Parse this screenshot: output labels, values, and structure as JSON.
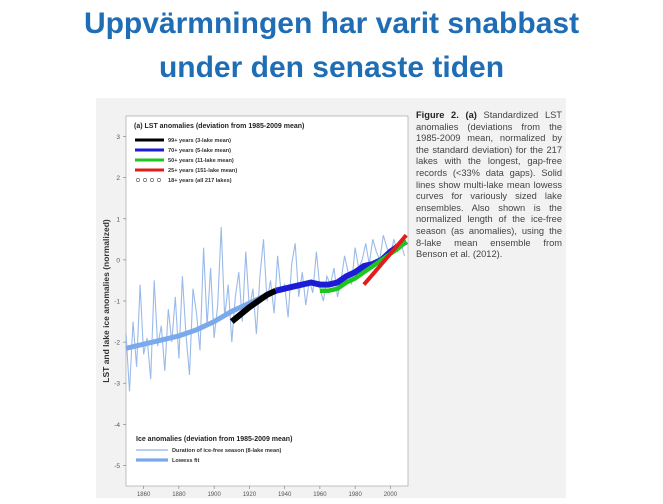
{
  "slide": {
    "title_line1": "Uppvärmningen har varit snabbast",
    "title_line2": "under den senaste tiden"
  },
  "caption": {
    "label": "Figure 2. (a)",
    "text": "Standardized LST anomalies (deviations from the 1985-2009 mean, normalized by the standard deviation) for the 217 lakes with the longest, gap-free records (<33% data gaps). Solid lines show multi-lake mean lowess curves for variously sized lake ensembles. Also shown is the normalized length of the ice-free season (as anomalies), using the 8-lake mean ensemble from Benson et al. (2012)."
  },
  "colors": {
    "title": "#1f6db5",
    "black": "#000000",
    "blue": "#1c1cd6",
    "green": "#1fc41f",
    "red": "#e01c1c",
    "scatter": "#666666",
    "ice_line": "#8fb3e8",
    "ice_fit": "#7aa9ec"
  },
  "chart_data": {
    "type": "line",
    "panel_title": "(a) LST anomalies (deviation from 1985-2009 mean)",
    "ylabel": "LST and lake ice anomalies (normalized)",
    "xlim": [
      1850,
      2010
    ],
    "ylim": [
      -5.5,
      3.5
    ],
    "x_ticks": [
      1860,
      1880,
      1900,
      1920,
      1940,
      1960,
      1980,
      2000
    ],
    "y_ticks": [
      3,
      2,
      1,
      0,
      -1,
      -2,
      -3,
      -4,
      -5
    ],
    "grid": false,
    "legend_top": [
      {
        "label": "99+ years (3-lake mean)",
        "color": "#000000",
        "style": "line"
      },
      {
        "label": "70+ years (5-lake mean)",
        "color": "#1c1cd6",
        "style": "line"
      },
      {
        "label": "50+ years (11-lake mean)",
        "color": "#1fc41f",
        "style": "line"
      },
      {
        "label": "25+ years (151-lake mean)",
        "color": "#e01c1c",
        "style": "line"
      },
      {
        "label": "18+ years (all 217 lakes)",
        "color": "#666666",
        "style": "markers"
      }
    ],
    "legend_bottom_title": "Ice anomalies (deviation from 1985-2009 mean)",
    "legend_bottom": [
      {
        "label": "Duration of ice-free season (8-lake mean)",
        "color": "#8fb3e8",
        "style": "thin"
      },
      {
        "label": "Lowess fit",
        "color": "#7aa9ec",
        "style": "thick"
      }
    ],
    "series": [
      {
        "name": "99+ years (3-lake mean)",
        "color": "#000000",
        "x": [
          1910,
          1920,
          1930,
          1935
        ],
        "y": [
          -1.5,
          -1.15,
          -0.85,
          -0.75
        ]
      },
      {
        "name": "70+ years (5-lake mean)",
        "color": "#1c1cd6",
        "x": [
          1935,
          1945,
          1955,
          1960,
          1965,
          1970,
          1975,
          1980,
          1985,
          1990,
          1995,
          2000,
          2005,
          2009
        ],
        "y": [
          -0.75,
          -0.65,
          -0.55,
          -0.6,
          -0.6,
          -0.55,
          -0.4,
          -0.3,
          -0.15,
          -0.1,
          0.0,
          0.2,
          0.35,
          0.45
        ]
      },
      {
        "name": "50+ years (11-lake mean)",
        "color": "#1fc41f",
        "x": [
          1960,
          1965,
          1970,
          1975,
          1980,
          1985,
          1990,
          1995,
          2000,
          2005,
          2009
        ],
        "y": [
          -0.75,
          -0.75,
          -0.7,
          -0.55,
          -0.45,
          -0.3,
          -0.15,
          0.0,
          0.15,
          0.3,
          0.45
        ]
      },
      {
        "name": "25+ years (151-lake mean)",
        "color": "#e01c1c",
        "x": [
          1985,
          1990,
          1995,
          2000,
          2005,
          2009
        ],
        "y": [
          -0.6,
          -0.35,
          -0.1,
          0.15,
          0.4,
          0.6
        ]
      },
      {
        "name": "Lowess fit",
        "color": "#7aa9ec",
        "x": [
          1850,
          1860,
          1870,
          1880,
          1890,
          1900,
          1910,
          1920,
          1930,
          1935
        ],
        "y": [
          -2.15,
          -2.05,
          -1.95,
          -1.85,
          -1.7,
          -1.5,
          -1.25,
          -1.05,
          -0.85,
          -0.75
        ]
      }
    ],
    "ice_series": {
      "name": "Duration of ice-free season (8-lake mean)",
      "x": [
        1850,
        1852,
        1854,
        1856,
        1858,
        1860,
        1862,
        1864,
        1866,
        1868,
        1870,
        1872,
        1874,
        1876,
        1878,
        1880,
        1882,
        1884,
        1886,
        1888,
        1890,
        1892,
        1894,
        1896,
        1898,
        1900,
        1902,
        1904,
        1906,
        1908,
        1910,
        1912,
        1914,
        1916,
        1918,
        1920,
        1922,
        1924,
        1926,
        1928,
        1930,
        1932,
        1934,
        1936,
        1938,
        1940,
        1942,
        1944,
        1946,
        1948,
        1950,
        1952,
        1954,
        1956,
        1958,
        1960,
        1962,
        1964,
        1966,
        1968,
        1970,
        1972,
        1974,
        1976,
        1978,
        1980,
        1982,
        1984,
        1986,
        1988,
        1990,
        1992,
        1994,
        1996,
        1998,
        2000,
        2002,
        2004,
        2006,
        2008
      ],
      "y": [
        -1.8,
        -3.2,
        -1.5,
        -2.6,
        -0.6,
        -2.3,
        -1.9,
        -2.9,
        -0.5,
        -2.1,
        -1.6,
        -2.7,
        -1.2,
        -2.0,
        -0.9,
        -2.4,
        -0.4,
        -1.8,
        -2.8,
        -0.7,
        -1.3,
        -2.2,
        0.3,
        -1.6,
        -0.2,
        -1.9,
        -1.1,
        0.8,
        -1.4,
        -0.6,
        -2.0,
        -0.9,
        -0.3,
        -1.5,
        0.2,
        -1.2,
        -0.7,
        -1.8,
        -0.4,
        0.5,
        -1.0,
        -0.5,
        -1.3,
        0.1,
        -0.8,
        -0.6,
        -1.4,
        -0.1,
        0.4,
        -0.9,
        -0.3,
        -1.1,
        -0.5,
        -0.8,
        0.2,
        -0.7,
        -1.0,
        -0.4,
        -0.6,
        -0.2,
        -0.9,
        -0.5,
        0.1,
        -0.3,
        -0.6,
        0.3,
        -0.2,
        0.0,
        0.4,
        -0.1,
        0.5,
        0.2,
        0.0,
        0.6,
        0.3,
        0.1,
        0.5,
        0.2,
        0.4,
        0.1
      ]
    },
    "scatter": {
      "name": "18+ years (all 217 lakes)",
      "x_range": [
        1910,
        2009
      ],
      "description_mean": "approximately follows 99+/70+/25+ curves"
    }
  }
}
